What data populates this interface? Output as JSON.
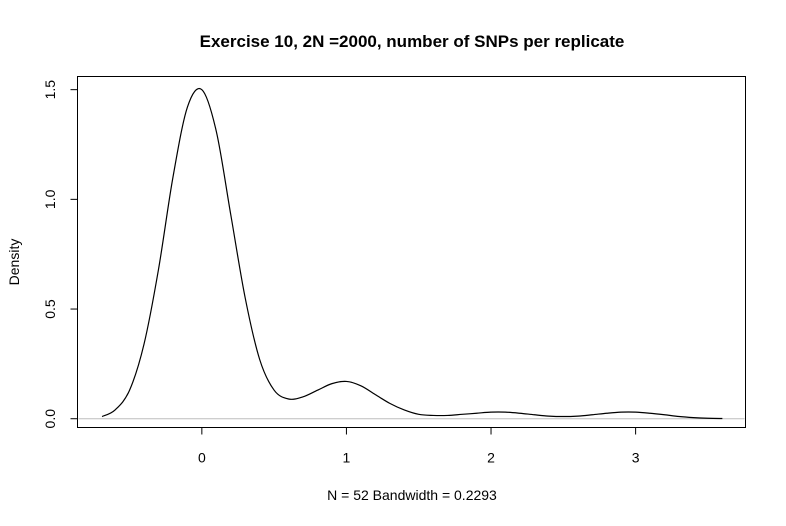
{
  "chart_data": {
    "type": "line",
    "title": "Exercise 10, 2N =2000, number of SNPs per replicate",
    "xlabel": "N = 52   Bandwidth = 0.2293",
    "ylabel": "Density",
    "xlim": [
      -0.86,
      3.76
    ],
    "ylim": [
      -0.04,
      1.56
    ],
    "x_ticks": [
      0,
      1,
      2,
      3
    ],
    "x_tick_labels": [
      "0",
      "1",
      "2",
      "3"
    ],
    "y_ticks": [
      0.0,
      0.5,
      1.0,
      1.5
    ],
    "y_tick_labels": [
      "0.0",
      "0.5",
      "1.0",
      "1.5"
    ],
    "baseline": 0,
    "baseline_color": "#bebebe",
    "line_color": "#000000",
    "grid": false,
    "legend": "none",
    "series": [
      {
        "x": [
          -0.69,
          -0.6,
          -0.5,
          -0.4,
          -0.3,
          -0.2,
          -0.1,
          0.0,
          0.1,
          0.2,
          0.3,
          0.4,
          0.5,
          0.6,
          0.7,
          0.8,
          0.9,
          1.0,
          1.1,
          1.2,
          1.3,
          1.4,
          1.5,
          1.6,
          1.7,
          1.8,
          1.9,
          2.0,
          2.1,
          2.2,
          2.3,
          2.4,
          2.5,
          2.6,
          2.7,
          2.8,
          2.9,
          3.0,
          3.1,
          3.2,
          3.3,
          3.4,
          3.5,
          3.6
        ],
        "values": [
          0.01,
          0.04,
          0.13,
          0.34,
          0.68,
          1.1,
          1.42,
          1.5,
          1.31,
          0.93,
          0.55,
          0.27,
          0.13,
          0.09,
          0.1,
          0.13,
          0.16,
          0.17,
          0.15,
          0.11,
          0.07,
          0.04,
          0.02,
          0.015,
          0.015,
          0.02,
          0.025,
          0.03,
          0.03,
          0.025,
          0.018,
          0.012,
          0.01,
          0.012,
          0.018,
          0.025,
          0.03,
          0.03,
          0.025,
          0.018,
          0.01,
          0.005,
          0.002,
          0.001
        ]
      }
    ]
  }
}
